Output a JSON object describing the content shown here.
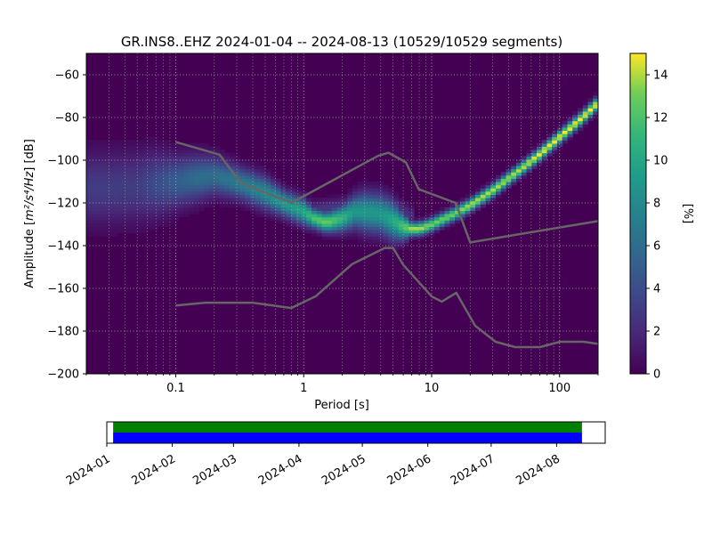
{
  "chart_data": {
    "type": "heatmap",
    "title": "GR.INS8..EHZ   2024-01-04 -- 2024-08-13  (10529/10529 segments)",
    "xlabel": "Period [s]",
    "ylabel_prefix": "Amplitude [",
    "ylabel_math": "m²/s⁴/Hz",
    "ylabel_suffix": "] [dB]",
    "x_scale": "log",
    "xlim": [
      0.02,
      200
    ],
    "ylim": [
      -200,
      -50
    ],
    "x_ticks": [
      {
        "value": 0.1,
        "label": "0.1"
      },
      {
        "value": 1,
        "label": "1"
      },
      {
        "value": 10,
        "label": "10"
      },
      {
        "value": 100,
        "label": "100"
      }
    ],
    "y_ticks": [
      {
        "value": -60,
        "label": "−60"
      },
      {
        "value": -80,
        "label": "−80"
      },
      {
        "value": -100,
        "label": "−100"
      },
      {
        "value": -120,
        "label": "−120"
      },
      {
        "value": -140,
        "label": "−140"
      },
      {
        "value": -160,
        "label": "−160"
      },
      {
        "value": -180,
        "label": "−180"
      },
      {
        "value": -200,
        "label": "−200"
      }
    ],
    "grid": true,
    "colormap": "viridis",
    "background_color": "#440154",
    "colorbar": {
      "label": "[%]",
      "range": [
        0,
        15
      ],
      "ticks": [
        {
          "value": 0,
          "label": "0"
        },
        {
          "value": 2,
          "label": "2"
        },
        {
          "value": 4,
          "label": "4"
        },
        {
          "value": 6,
          "label": "6"
        },
        {
          "value": 8,
          "label": "8"
        },
        {
          "value": 10,
          "label": "10"
        },
        {
          "value": 12,
          "label": "12"
        },
        {
          "value": 14,
          "label": "14"
        }
      ]
    },
    "mode_curve": {
      "period": [
        0.02,
        0.03,
        0.05,
        0.07,
        0.1,
        0.15,
        0.2,
        0.3,
        0.5,
        0.7,
        1.0,
        1.2,
        1.5,
        2.0,
        2.5,
        3.0,
        4.0,
        5.0,
        6.0,
        7.0,
        8.0,
        10,
        15,
        20,
        30,
        50,
        70,
        100,
        150,
        200
      ],
      "db": [
        -113,
        -113,
        -112,
        -111,
        -110,
        -108,
        -107,
        -110,
        -115,
        -120,
        -124,
        -127,
        -129,
        -127,
        -124,
        -124,
        -125,
        -128,
        -131,
        -132,
        -132,
        -130,
        -125,
        -121,
        -114,
        -104,
        -97,
        -89,
        -80,
        -73
      ],
      "peak_pct": [
        3,
        3,
        3,
        4,
        5,
        6,
        6,
        7,
        8,
        9,
        10,
        12,
        13,
        11,
        9,
        9,
        9,
        10,
        12,
        14,
        14,
        13,
        13,
        14,
        14,
        14,
        15,
        15,
        15,
        15
      ],
      "spread_db": [
        11,
        11,
        11,
        10,
        8,
        7,
        6,
        5,
        5,
        4,
        4,
        3,
        3,
        4,
        5,
        6,
        6,
        6,
        4,
        2,
        2,
        2,
        2,
        2,
        2,
        2,
        2,
        2,
        2,
        2
      ]
    },
    "secondary_curve": {
      "period": [
        0.05,
        0.1,
        0.2,
        0.3,
        0.5,
        1,
        2,
        3,
        4,
        5,
        7
      ],
      "db": [
        -106,
        -106,
        -106,
        -112,
        -117,
        -124,
        -122,
        -118,
        -119,
        -121,
        -126
      ],
      "peak_pct": [
        1.2,
        2,
        3,
        3.5,
        3,
        2.5,
        3,
        3.5,
        3,
        3,
        2
      ],
      "spread_db": [
        4,
        4,
        3,
        3,
        3,
        3,
        3,
        3,
        3,
        3,
        3
      ]
    },
    "noise_models": [
      {
        "name": "",
        "color": "#666666",
        "period": [
          0.1,
          0.17,
          0.4,
          0.8,
          1.24,
          2.4,
          4.3,
          5.0,
          6.0,
          10,
          12,
          15.6,
          21.9,
          31.6,
          45,
          70,
          101,
          154,
          200
        ],
        "db": [
          -168,
          -166.7,
          -166.7,
          -169.2,
          -163.7,
          -148.6,
          -141.1,
          -141.1,
          -149,
          -163.8,
          -166.2,
          -162.1,
          -177.5,
          -185,
          -187.5,
          -187.5,
          -185,
          -185,
          -186
        ]
      },
      {
        "name": "",
        "color": "#666666",
        "period": [
          0.1,
          0.22,
          0.32,
          0.8,
          3.8,
          4.6,
          6.3,
          7.9,
          15.4,
          20,
          354.8
        ],
        "db": [
          -91.5,
          -97.4,
          -110.5,
          -120,
          -98,
          -96.5,
          -101,
          -113.5,
          -120,
          -138.5,
          -126
        ]
      }
    ]
  },
  "timeline": {
    "x_start": "2024-01-01",
    "x_end": "2024-08-24",
    "coverage_start": "2024-01-04",
    "coverage_end": "2024-08-13",
    "colors": [
      "#008000",
      "#0000ff"
    ],
    "ticks": [
      {
        "date": "2024-01-01",
        "label": "2024-01"
      },
      {
        "date": "2024-02-01",
        "label": "2024-02"
      },
      {
        "date": "2024-03-01",
        "label": "2024-03"
      },
      {
        "date": "2024-04-01",
        "label": "2024-04"
      },
      {
        "date": "2024-05-01",
        "label": "2024-05"
      },
      {
        "date": "2024-06-01",
        "label": "2024-06"
      },
      {
        "date": "2024-07-01",
        "label": "2024-07"
      },
      {
        "date": "2024-08-01",
        "label": "2024-08"
      }
    ]
  }
}
